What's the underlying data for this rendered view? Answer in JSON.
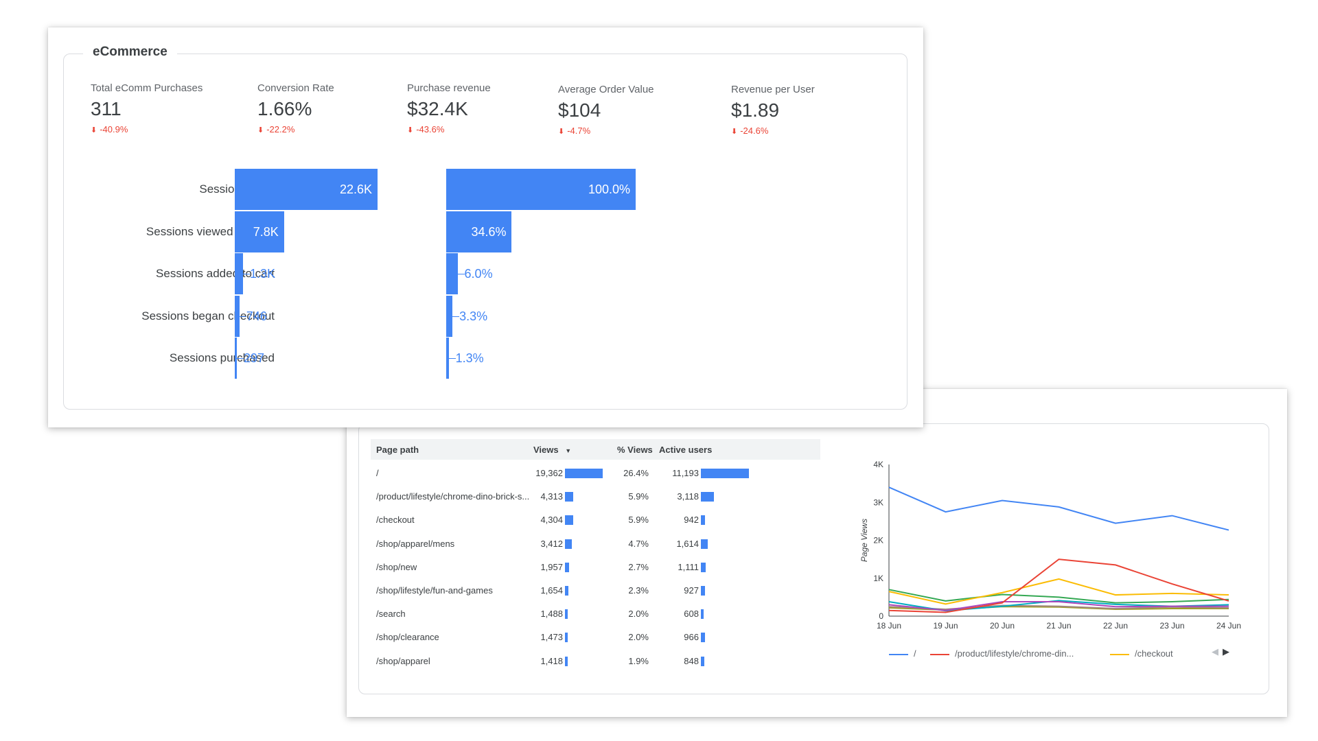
{
  "ecommerce": {
    "title": "eCommerce",
    "kpis": [
      {
        "label": "Total eComm Purchases",
        "value": "311",
        "change": "-40.9%"
      },
      {
        "label": "Conversion Rate",
        "value": "1.66%",
        "change": "-22.2%"
      },
      {
        "label": "Purchase revenue",
        "value": "$32.4K",
        "change": "-43.6%"
      },
      {
        "label": "Average Order Value",
        "value": "$104",
        "change": "-4.7%"
      },
      {
        "label": "Revenue per User",
        "value": "$1.89",
        "change": "-24.6%"
      }
    ],
    "funnel": {
      "steps": [
        "Session Starts",
        "Sessions viewed an item",
        "Sessions added to cart",
        "Sessions began checkout",
        "Sessions purchased"
      ],
      "counts": [
        22600,
        7800,
        1300,
        746,
        297
      ],
      "count_labels": [
        "22.6K",
        "7.8K",
        "1.3K",
        "746",
        "297"
      ],
      "percents": [
        100.0,
        34.6,
        6.0,
        3.3,
        1.3
      ],
      "percent_labels": [
        "100.0%",
        "34.6%",
        "6.0%",
        "3.3%",
        "1.3%"
      ]
    }
  },
  "pages_table": {
    "headers": {
      "path": "Page path",
      "views": "Views",
      "pct": "% Views",
      "users": "Active users"
    },
    "sort_icon": "caret-down-icon",
    "rows": [
      {
        "path": "/",
        "views": "19,362",
        "views_value": 19362,
        "pct": "26.4%",
        "users": "11,193",
        "users_value": 11193
      },
      {
        "path": "/product/lifestyle/chrome-dino-brick-s...",
        "views": "4,313",
        "views_value": 4313,
        "pct": "5.9%",
        "users": "3,118",
        "users_value": 3118
      },
      {
        "path": "/checkout",
        "views": "4,304",
        "views_value": 4304,
        "pct": "5.9%",
        "users": "942",
        "users_value": 942
      },
      {
        "path": "/shop/apparel/mens",
        "views": "3,412",
        "views_value": 3412,
        "pct": "4.7%",
        "users": "1,614",
        "users_value": 1614
      },
      {
        "path": "/shop/new",
        "views": "1,957",
        "views_value": 1957,
        "pct": "2.7%",
        "users": "1,111",
        "users_value": 1111
      },
      {
        "path": "/shop/lifestyle/fun-and-games",
        "views": "1,654",
        "views_value": 1654,
        "pct": "2.3%",
        "users": "927",
        "users_value": 927
      },
      {
        "path": "/search",
        "views": "1,488",
        "views_value": 1488,
        "pct": "2.0%",
        "users": "608",
        "users_value": 608
      },
      {
        "path": "/shop/clearance",
        "views": "1,473",
        "views_value": 1473,
        "pct": "2.0%",
        "users": "966",
        "users_value": 966
      },
      {
        "path": "/shop/apparel",
        "views": "1,418",
        "views_value": 1418,
        "pct": "1.9%",
        "users": "848",
        "users_value": 848
      }
    ]
  },
  "chart_data": {
    "type": "line",
    "ylabel": "Page Views",
    "xlabel": "",
    "x": [
      "18 Jun",
      "19 Jun",
      "20 Jun",
      "21 Jun",
      "22 Jun",
      "23 Jun",
      "24 Jun"
    ],
    "y_ticks": [
      "0",
      "1K",
      "2K",
      "3K",
      "4K"
    ],
    "ylim": [
      0,
      4000
    ],
    "series": [
      {
        "name": "/",
        "color": "#4285f4",
        "values": [
          3400,
          2750,
          3050,
          2880,
          2450,
          2650,
          2270
        ]
      },
      {
        "name": "/product/lifestyle/chrome-din...",
        "color": "#ea4335",
        "values": [
          150,
          100,
          350,
          1500,
          1350,
          850,
          400
        ]
      },
      {
        "name": "/checkout",
        "color": "#fbbc04",
        "values": [
          650,
          320,
          620,
          980,
          560,
          600,
          560
        ]
      },
      {
        "color": "#34a853",
        "values": [
          700,
          400,
          570,
          500,
          350,
          380,
          440
        ]
      },
      {
        "color": "#ab47bc",
        "values": [
          300,
          150,
          380,
          380,
          250,
          260,
          260
        ]
      },
      {
        "color": "#00acc1",
        "values": [
          380,
          140,
          260,
          410,
          310,
          260,
          300
        ]
      },
      {
        "color": "#a1887f",
        "values": [
          250,
          180,
          280,
          260,
          200,
          240,
          220
        ]
      },
      {
        "color": "#9e9d24",
        "values": [
          220,
          160,
          250,
          240,
          180,
          200,
          200
        ]
      }
    ],
    "legend": [
      "/",
      "/product/lifestyle/chrome-din...",
      "/checkout"
    ],
    "legend_position": "bottom"
  }
}
